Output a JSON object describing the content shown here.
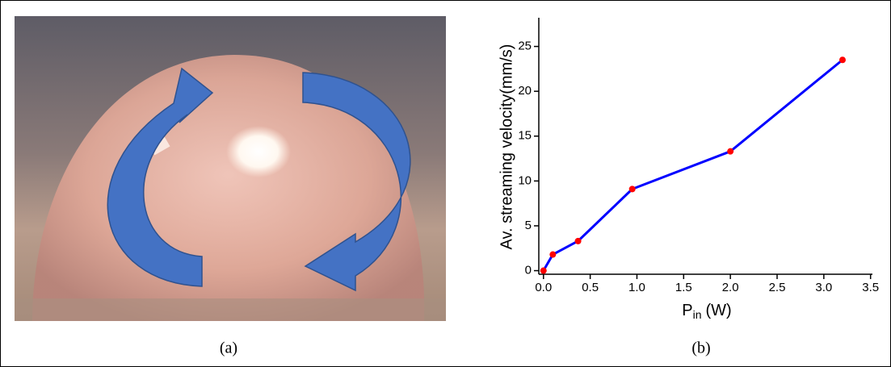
{
  "chart_data": {
    "type": "line",
    "ylabel": "Av. streaming velocity(mm/s)",
    "xlabel": {
      "main": "P",
      "sub": "in",
      "unit": "(W)"
    },
    "captions": [
      "(a)",
      "(b)"
    ],
    "x": [
      0,
      0.1,
      0.37,
      0.95,
      2.0,
      3.2
    ],
    "series": [
      {
        "color": "#0000ff",
        "marker_color": "#ff0000",
        "values": [
          0,
          1.8,
          3.3,
          9.1,
          13.3,
          23.5
        ]
      }
    ],
    "xlim": [
      -0.05,
      3.52
    ],
    "ylim": [
      -0.4,
      28.2
    ],
    "xticks": [
      {
        "value": 0,
        "label": "0.0"
      },
      0.5,
      {
        "value": 1,
        "label": "1.0"
      },
      1.5,
      {
        "value": 2,
        "label": "2.0"
      },
      2.5,
      {
        "value": 3,
        "label": "3.0"
      },
      3.5
    ],
    "yticks": [
      0,
      5,
      10,
      15,
      20,
      25
    ]
  }
}
